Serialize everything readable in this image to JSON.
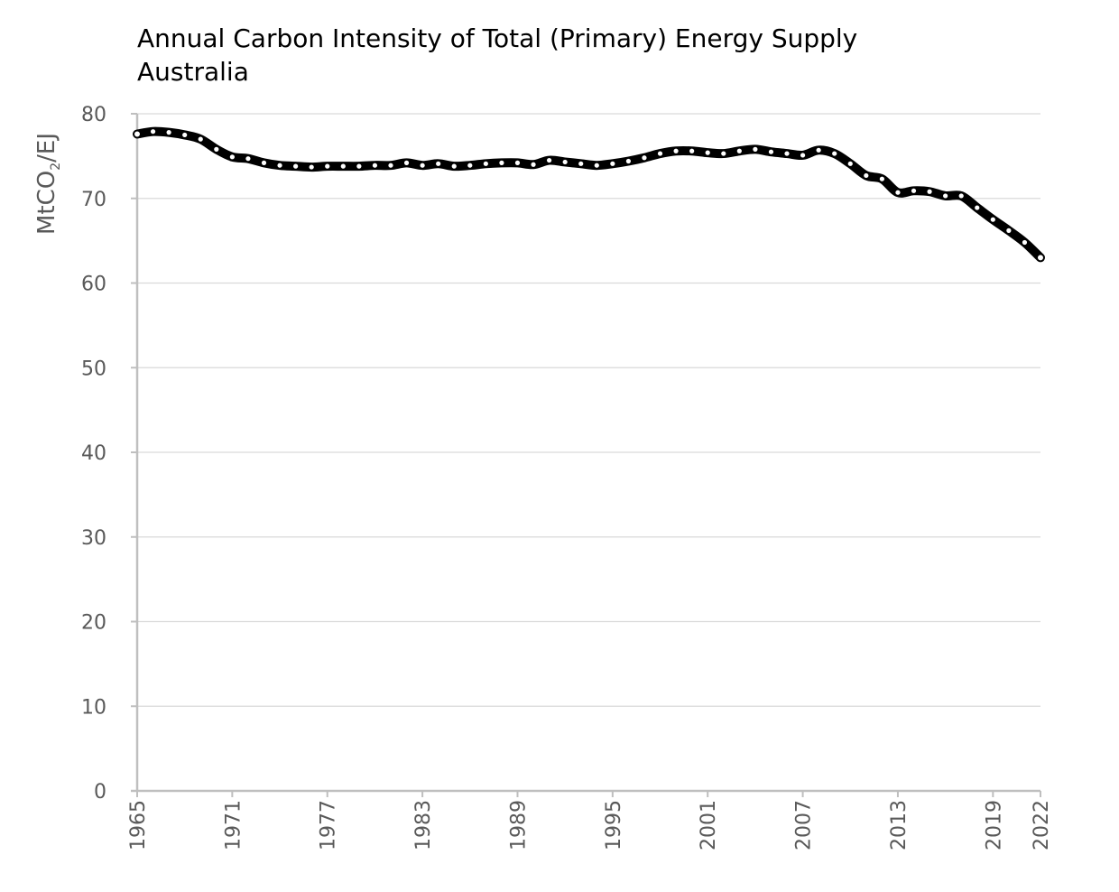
{
  "chart_data": {
    "type": "line",
    "title": "Annual Carbon Intensity of Total (Primary) Energy Supply",
    "subtitle": "Australia",
    "xlabel": "",
    "ylabel": {
      "main": "MtCO",
      "subscript": "2",
      "suffix": "/EJ"
    },
    "ylim": [
      0,
      80
    ],
    "yticks": [
      0,
      10,
      20,
      30,
      40,
      50,
      60,
      70,
      80
    ],
    "xlim": [
      1965,
      2022
    ],
    "xticks": [
      "1965",
      "1971",
      "1977",
      "1983",
      "1989",
      "1995",
      "2001",
      "2007",
      "2013",
      "2019",
      "2022"
    ],
    "grid": true,
    "legend": "none",
    "colors": {
      "line": "#000000",
      "marker_fill": "#ffffff",
      "grid": "#d9d9d9",
      "axis": "#bfbfbf",
      "tick_text": "#595959"
    },
    "x": [
      1965,
      1966,
      1967,
      1968,
      1969,
      1970,
      1971,
      1972,
      1973,
      1974,
      1975,
      1976,
      1977,
      1978,
      1979,
      1980,
      1981,
      1982,
      1983,
      1984,
      1985,
      1986,
      1987,
      1988,
      1989,
      1990,
      1991,
      1992,
      1993,
      1994,
      1995,
      1996,
      1997,
      1998,
      1999,
      2000,
      2001,
      2002,
      2003,
      2004,
      2005,
      2006,
      2007,
      2008,
      2009,
      2010,
      2011,
      2012,
      2013,
      2014,
      2015,
      2016,
      2017,
      2018,
      2019,
      2020,
      2021,
      2022
    ],
    "series": [
      {
        "name": "Australia",
        "values": [
          77.6,
          77.9,
          77.8,
          77.5,
          77.0,
          75.8,
          74.9,
          74.7,
          74.2,
          73.9,
          73.8,
          73.7,
          73.8,
          73.8,
          73.8,
          73.9,
          73.9,
          74.2,
          73.9,
          74.1,
          73.8,
          73.9,
          74.1,
          74.2,
          74.2,
          74.0,
          74.5,
          74.3,
          74.1,
          73.9,
          74.1,
          74.4,
          74.8,
          75.3,
          75.6,
          75.6,
          75.4,
          75.3,
          75.6,
          75.8,
          75.5,
          75.3,
          75.1,
          75.7,
          75.3,
          74.1,
          72.7,
          72.3,
          70.7,
          70.9,
          70.8,
          70.3,
          70.3,
          68.9,
          67.5,
          66.2,
          64.8,
          63.0
        ]
      }
    ]
  }
}
